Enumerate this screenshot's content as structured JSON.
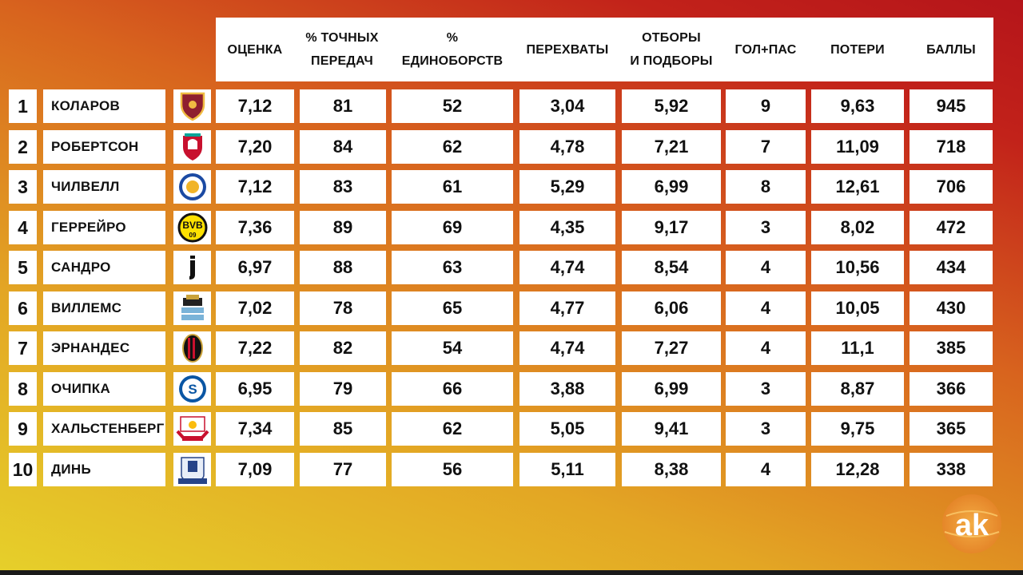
{
  "headers": [
    {
      "line1": "ОЦЕНКА",
      "line2": ""
    },
    {
      "line1": "% ТОЧНЫХ",
      "line2": "ПЕРЕДАЧ"
    },
    {
      "line1": "%",
      "line2": "ЕДИНОБОРСТВ"
    },
    {
      "line1": "ПЕРЕХВАТЫ",
      "line2": ""
    },
    {
      "line1": "ОТБОРЫ",
      "line2": "И ПОДБОРЫ"
    },
    {
      "line1": "ГОЛ+ПАС",
      "line2": ""
    },
    {
      "line1": "ПОТЕРИ",
      "line2": ""
    },
    {
      "line1": "БАЛЛЫ",
      "line2": ""
    }
  ],
  "rows": [
    {
      "rank": "1",
      "name": "КОЛАРОВ",
      "club_icon": "roma-crest-icon",
      "values": [
        "7,12",
        "81",
        "52",
        "3,04",
        "5,92",
        "9",
        "9,63",
        "945"
      ]
    },
    {
      "rank": "2",
      "name": "РОБЕРТСОН",
      "club_icon": "liverpool-crest-icon",
      "values": [
        "7,20",
        "84",
        "62",
        "4,78",
        "7,21",
        "7",
        "11,09",
        "718"
      ]
    },
    {
      "rank": "3",
      "name": "ЧИЛВЕЛЛ",
      "club_icon": "leicester-crest-icon",
      "values": [
        "7,12",
        "83",
        "61",
        "5,29",
        "6,99",
        "8",
        "12,61",
        "706"
      ]
    },
    {
      "rank": "4",
      "name": "ГЕРРЕЙРО",
      "club_icon": "dortmund-crest-icon",
      "values": [
        "7,36",
        "89",
        "69",
        "4,35",
        "9,17",
        "3",
        "8,02",
        "472"
      ]
    },
    {
      "rank": "5",
      "name": "САНДРО",
      "club_icon": "juventus-crest-icon",
      "values": [
        "6,97",
        "88",
        "63",
        "4,74",
        "8,54",
        "4",
        "10,56",
        "434"
      ]
    },
    {
      "rank": "6",
      "name": "ВИЛЛЕМС",
      "club_icon": "newcastle-crest-icon",
      "values": [
        "7,02",
        "78",
        "65",
        "4,77",
        "6,06",
        "4",
        "10,05",
        "430"
      ]
    },
    {
      "rank": "7",
      "name": "ЭРНАНДЕС",
      "club_icon": "milan-crest-icon",
      "values": [
        "7,22",
        "82",
        "54",
        "4,74",
        "7,27",
        "4",
        "11,1",
        "385"
      ]
    },
    {
      "rank": "8",
      "name": "ОЧИПКА",
      "club_icon": "schalke-crest-icon",
      "values": [
        "6,95",
        "79",
        "66",
        "3,88",
        "6,99",
        "3",
        "8,87",
        "366"
      ]
    },
    {
      "rank": "9",
      "name": "ХАЛЬСТЕНБЕРГ",
      "club_icon": "leipzig-crest-icon",
      "values": [
        "7,34",
        "85",
        "62",
        "5,05",
        "9,41",
        "3",
        "9,75",
        "365"
      ]
    },
    {
      "rank": "10",
      "name": "ДИНЬ",
      "club_icon": "everton-crest-icon",
      "values": [
        "7,09",
        "77",
        "56",
        "5,11",
        "8,38",
        "4",
        "12,28",
        "338"
      ]
    }
  ],
  "watermark": {
    "icon": "ak-logo-icon",
    "text": "ak"
  }
}
